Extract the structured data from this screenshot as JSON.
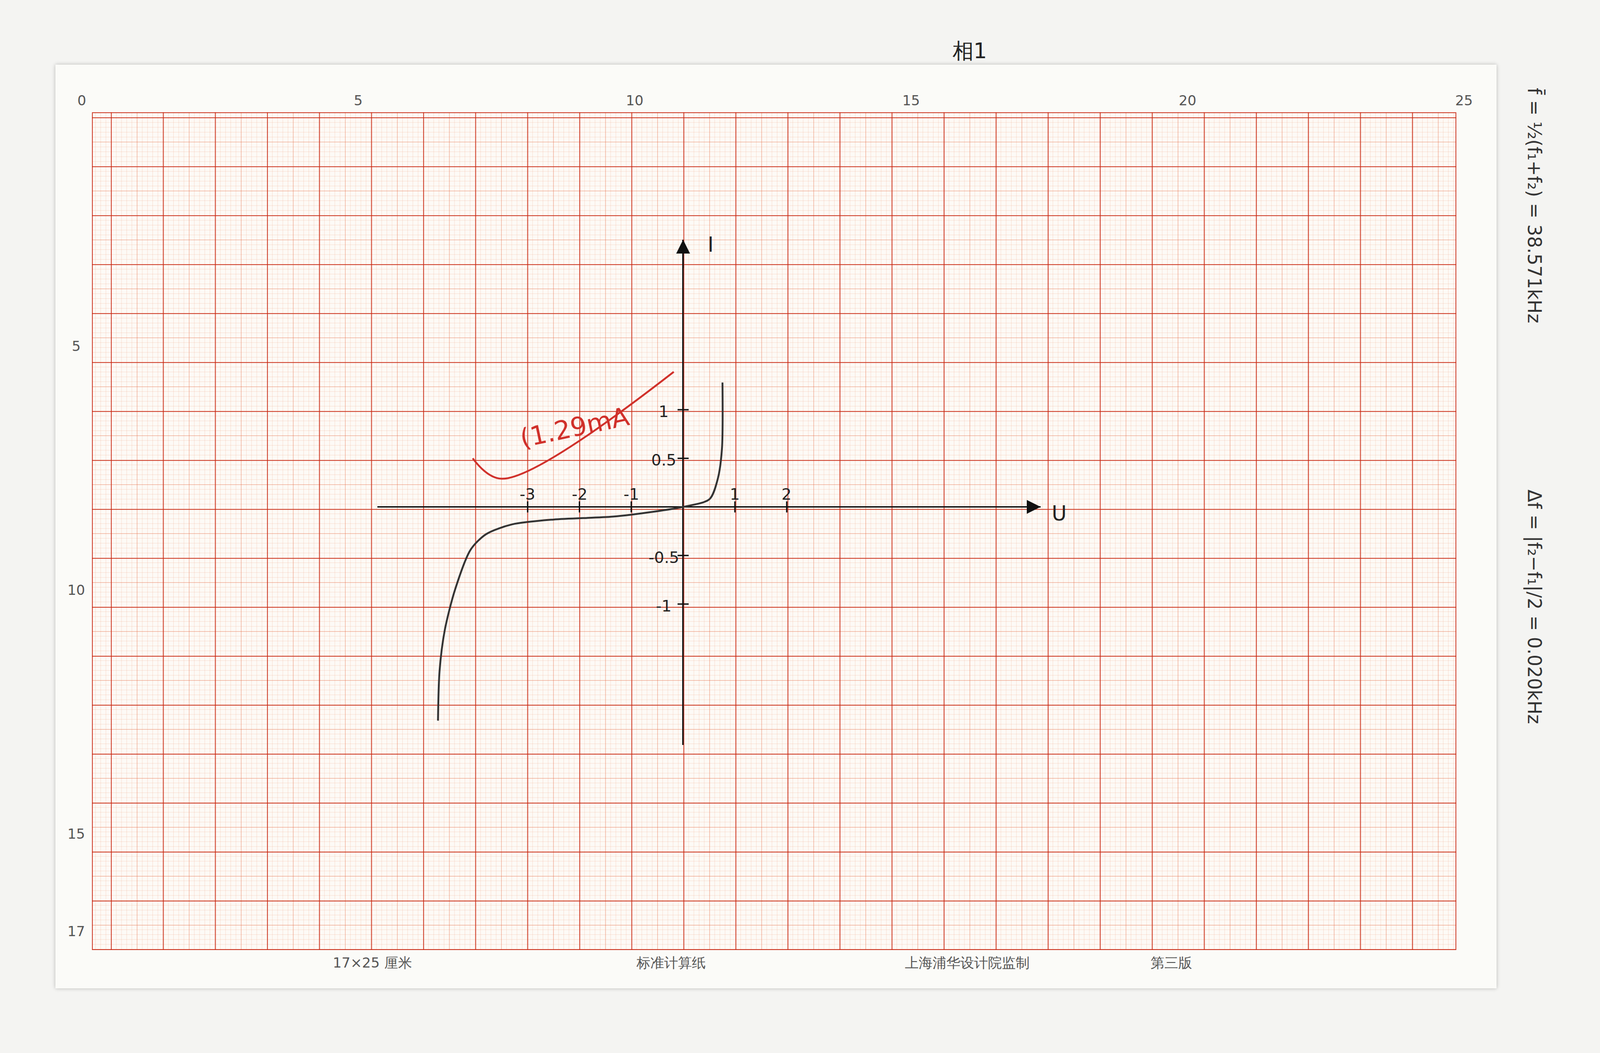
{
  "chart_data": {
    "type": "line",
    "title": "相1",
    "x_label": "U",
    "y_label": "I",
    "x": [
      -4.73,
      -4.7,
      -4.6,
      -4.4,
      -4.1,
      -3.8,
      -3.3,
      -2.5,
      -1.35,
      -0.57,
      0,
      0.51,
      0.67,
      0.75,
      0.76
    ],
    "values": [
      -2.2,
      -1.69,
      -1.27,
      -0.85,
      -0.44,
      -0.28,
      -0.18,
      -0.13,
      -0.1,
      -0.05,
      0,
      0.08,
      0.29,
      0.6,
      1.28
    ],
    "color": "#333333",
    "xlim": [
      -5.9,
      6.9
    ],
    "ylim": [
      -2.45,
      2.75
    ],
    "xticks": [
      -3,
      -2,
      -1,
      1,
      2
    ],
    "yticks": [
      -1,
      -0.5,
      0.5,
      1
    ],
    "grid": false,
    "annotations": [
      {
        "text": "(1.29mA",
        "x": -2.1,
        "y": 0.82,
        "color": "#d0302a",
        "line_x": [
          -4.06,
          -3.5,
          -0.18
        ],
        "line_y": [
          0.5,
          0.29,
          1.39
        ]
      }
    ]
  },
  "page": {
    "ruler_top": [
      0,
      5,
      10,
      15,
      20,
      25
    ],
    "ruler_left": [
      5,
      10,
      15,
      17
    ],
    "footer": [
      "17×25 厘米",
      "标准计算纸",
      "上海浦华设计院监制",
      "第三版"
    ],
    "notes": [
      "f̄ = ½(f₁+f₂) = 38.571kHz",
      "Δf = |f₂−f₁|/2 = 0.020kHz"
    ]
  }
}
